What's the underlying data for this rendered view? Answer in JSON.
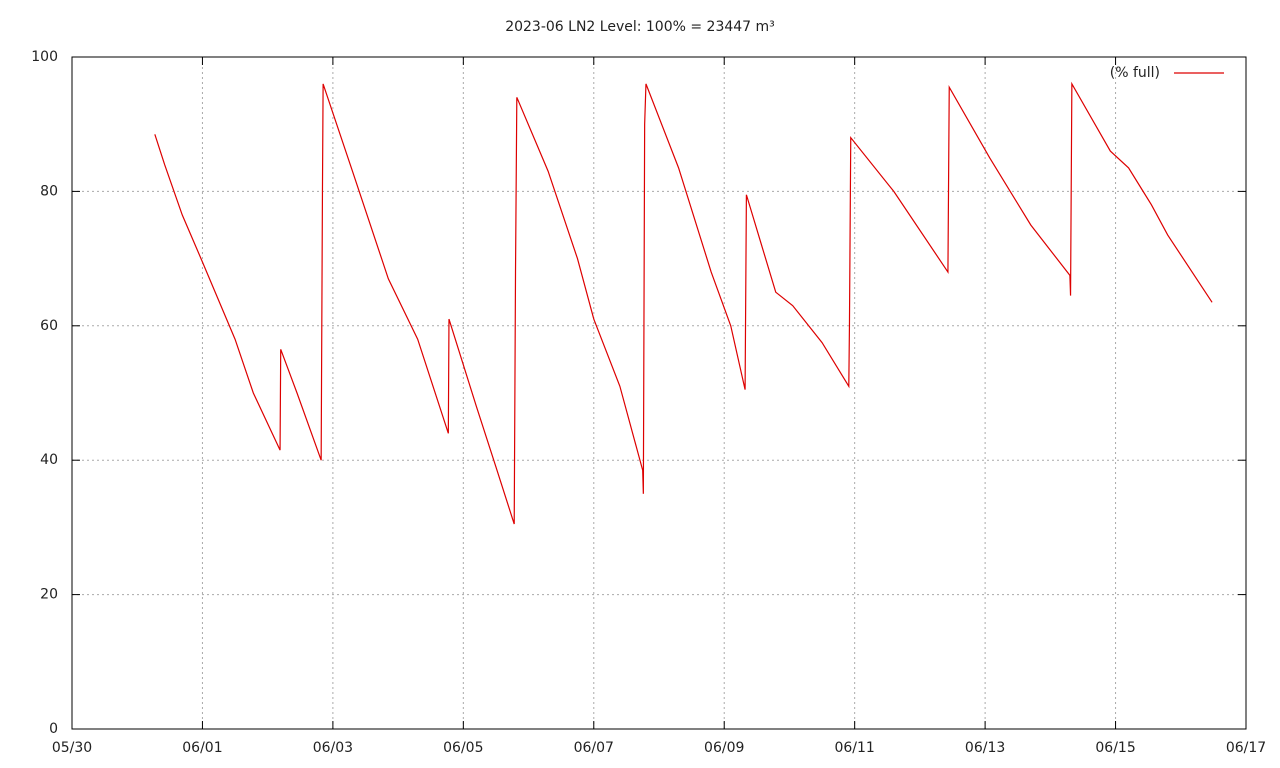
{
  "chart_data": {
    "type": "line",
    "title": "2023-06 LN2 Level: 100% = 23447 m³",
    "series": [
      {
        "name": "(% full)",
        "color": "#dd0000",
        "x": [
          1.27,
          1.42,
          1.69,
          2.0,
          2.5,
          2.78,
          3.19,
          3.2,
          3.45,
          3.82,
          3.84,
          3.85,
          4.3,
          4.85,
          5.3,
          5.77,
          5.78,
          6.2,
          6.5,
          6.78,
          6.8,
          6.82,
          7.3,
          7.75,
          8.0,
          8.4,
          8.75,
          8.76,
          8.78,
          8.8,
          9.3,
          9.8,
          10.1,
          10.32,
          10.34,
          10.79,
          11.05,
          11.5,
          11.91,
          11.92,
          11.94,
          12.6,
          13.43,
          13.45,
          14.07,
          14.7,
          15.3,
          15.31,
          15.33,
          15.92,
          16.2,
          16.55,
          16.8,
          17.48
        ],
        "values": [
          88.5,
          84,
          76.5,
          69.5,
          58,
          50,
          41.5,
          56.5,
          50,
          40,
          80,
          96,
          83,
          67,
          58,
          44,
          61,
          48,
          39,
          30.5,
          68,
          94,
          83,
          70,
          61,
          51,
          38.5,
          35,
          90,
          96,
          83.5,
          68,
          60,
          50.5,
          79.5,
          65,
          63,
          57.5,
          51,
          60,
          88,
          80,
          68,
          95.5,
          85,
          75,
          67.5,
          64.5,
          96,
          86,
          83.5,
          78,
          73.5,
          63.5
        ]
      }
    ],
    "xlim": [
      0,
      18
    ],
    "xticks": [
      {
        "value": 0,
        "label": "05/30"
      },
      {
        "value": 2,
        "label": "06/01"
      },
      {
        "value": 4,
        "label": "06/03"
      },
      {
        "value": 6,
        "label": "06/05"
      },
      {
        "value": 8,
        "label": "06/07"
      },
      {
        "value": 10,
        "label": "06/09"
      },
      {
        "value": 12,
        "label": "06/11"
      },
      {
        "value": 14,
        "label": "06/13"
      },
      {
        "value": 16,
        "label": "06/15"
      },
      {
        "value": 18,
        "label": "06/17"
      }
    ],
    "ylim": [
      0,
      100
    ],
    "yticks": [
      0,
      20,
      40,
      60,
      80,
      100
    ],
    "grid": true,
    "legend": "top-right"
  }
}
